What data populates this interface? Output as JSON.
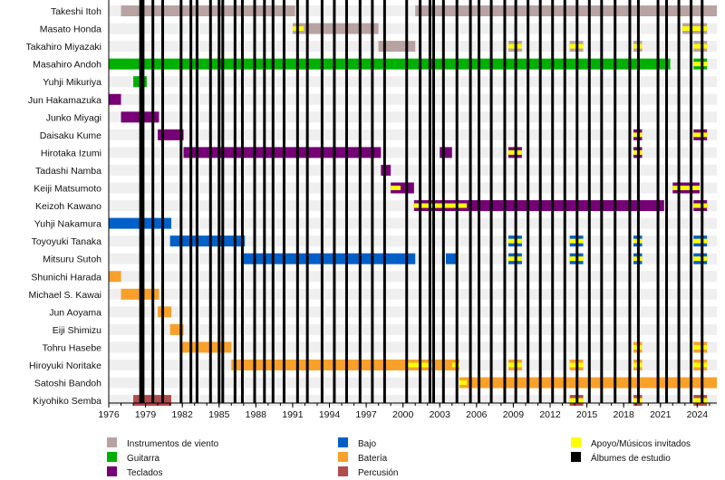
{
  "chart_data": {
    "type": "timeline",
    "title": "",
    "xlabel": "",
    "ylabel": "",
    "xlim": [
      1976,
      2025.6
    ],
    "x_ticks": [
      1976,
      1979,
      1982,
      1985,
      1988,
      1991,
      1994,
      1997,
      2000,
      2003,
      2006,
      2009,
      2012,
      2015,
      2018,
      2021,
      2024
    ],
    "x_minor_step": 1,
    "grid": "alternating row bands",
    "legend_position": "bottom",
    "colors": {
      "wind": "#b8a2a2",
      "guitar": "#00b000",
      "keys": "#760075",
      "bass": "#0060c8",
      "drums": "#f8a02a",
      "perc": "#b04d4d",
      "support": "#ffff00",
      "album": "#000000"
    },
    "legend": [
      {
        "key": "wind",
        "label": "Instrumentos de viento"
      },
      {
        "key": "guitar",
        "label": "Guitarra"
      },
      {
        "key": "keys",
        "label": "Teclados"
      },
      {
        "key": "bass",
        "label": "Bajo"
      },
      {
        "key": "drums",
        "label": "Batería"
      },
      {
        "key": "perc",
        "label": "Percusión"
      },
      {
        "key": "support",
        "label": "Apoyo/Músicos invitados"
      },
      {
        "key": "album",
        "label": "Álbumes de estudio"
      }
    ],
    "members": [
      {
        "name": "Takeshi Itoh",
        "periods": [
          {
            "k": "wind",
            "s": 1977,
            "e": 1991.2
          },
          {
            "k": "wind",
            "s": 2001,
            "e": 2025.6
          }
        ]
      },
      {
        "name": "Masato Honda",
        "periods": [
          {
            "k": "wind",
            "s": 1991,
            "e": 1998,
            "sup": [
              1991,
              1991.9
            ]
          },
          {
            "k": "wind",
            "s": 2022.8,
            "e": 2024.8,
            "stripe": true
          }
        ]
      },
      {
        "name": "Takahiro Miyazaki",
        "periods": [
          {
            "k": "wind",
            "s": 1998,
            "e": 2001
          },
          {
            "k": "wind",
            "s": 2008.6,
            "e": 2009.7,
            "stripe": true
          },
          {
            "k": "wind",
            "s": 2013.6,
            "e": 2014.7,
            "stripe": true
          },
          {
            "k": "wind",
            "s": 2018.8,
            "e": 2019.5,
            "stripe": true
          },
          {
            "k": "wind",
            "s": 2023.7,
            "e": 2024.8,
            "stripe": true
          }
        ]
      },
      {
        "name": "Masahiro Andoh",
        "periods": [
          {
            "k": "guitar",
            "s": 1976,
            "e": 2021.8
          },
          {
            "k": "guitar",
            "s": 2023.7,
            "e": 2024.8,
            "stripe": true
          }
        ]
      },
      {
        "name": "Yuhji Mikuriya",
        "periods": [
          {
            "k": "guitar",
            "s": 1978,
            "e": 1979.1
          }
        ]
      },
      {
        "name": "Jun Hakamazuka",
        "periods": [
          {
            "k": "keys",
            "s": 1976,
            "e": 1977
          }
        ]
      },
      {
        "name": "Junko Miyagi",
        "periods": [
          {
            "k": "keys",
            "s": 1977,
            "e": 1980.1
          }
        ]
      },
      {
        "name": "Daisaku Kume",
        "periods": [
          {
            "k": "keys",
            "s": 1980,
            "e": 1982.1
          },
          {
            "k": "keys",
            "s": 2018.8,
            "e": 2019.5,
            "stripe": true
          },
          {
            "k": "keys",
            "s": 2023.7,
            "e": 2024.8,
            "stripe": true
          }
        ]
      },
      {
        "name": "Hirotaka Izumi",
        "periods": [
          {
            "k": "keys",
            "s": 1982.1,
            "e": 1998.2
          },
          {
            "k": "keys",
            "s": 2003,
            "e": 2004
          },
          {
            "k": "keys",
            "s": 2008.6,
            "e": 2009.7,
            "stripe": true
          },
          {
            "k": "keys",
            "s": 2018.8,
            "e": 2019.5,
            "stripe": true
          }
        ]
      },
      {
        "name": "Tadashi Namba",
        "periods": [
          {
            "k": "keys",
            "s": 1998.2,
            "e": 1999
          }
        ]
      },
      {
        "name": "Keiji Matsumoto",
        "periods": [
          {
            "k": "keys",
            "s": 1999,
            "e": 2000.9,
            "sup": [
              1999,
              1999.8
            ]
          },
          {
            "k": "keys",
            "s": 2022,
            "e": 2024.2,
            "stripe": true
          }
        ]
      },
      {
        "name": "Keizoh Kawano",
        "periods": [
          {
            "k": "keys",
            "s": 2000.9,
            "e": 2021.3,
            "sup": [
              2000.9,
              2005.2
            ]
          },
          {
            "k": "keys",
            "s": 2023.7,
            "e": 2024.8,
            "stripe": true
          }
        ]
      },
      {
        "name": "Yuhji Nakamura",
        "periods": [
          {
            "k": "bass",
            "s": 1976,
            "e": 1981.1
          }
        ]
      },
      {
        "name": "Toyoyuki Tanaka",
        "periods": [
          {
            "k": "bass",
            "s": 1981,
            "e": 1987.1
          },
          {
            "k": "bass",
            "s": 2008.6,
            "e": 2009.7,
            "stripe": true
          },
          {
            "k": "bass",
            "s": 2013.6,
            "e": 2014.7,
            "stripe": true
          },
          {
            "k": "bass",
            "s": 2018.8,
            "e": 2019.5,
            "stripe": true
          },
          {
            "k": "bass",
            "s": 2023.7,
            "e": 2024.8,
            "stripe": true
          }
        ]
      },
      {
        "name": "Mitsuru Sutoh",
        "periods": [
          {
            "k": "bass",
            "s": 1987,
            "e": 2001
          },
          {
            "k": "bass",
            "s": 2003.5,
            "e": 2004.4
          },
          {
            "k": "bass",
            "s": 2008.6,
            "e": 2009.7,
            "stripe": true
          },
          {
            "k": "bass",
            "s": 2013.6,
            "e": 2014.7,
            "stripe": true
          },
          {
            "k": "bass",
            "s": 2018.8,
            "e": 2019.5,
            "stripe": true
          },
          {
            "k": "bass",
            "s": 2023.7,
            "e": 2024.8,
            "stripe": true
          }
        ]
      },
      {
        "name": "Shunichi Harada",
        "periods": [
          {
            "k": "drums",
            "s": 1976,
            "e": 1977
          }
        ]
      },
      {
        "name": "Michael S. Kawai",
        "periods": [
          {
            "k": "drums",
            "s": 1977,
            "e": 1980.1
          }
        ]
      },
      {
        "name": "Jun Aoyama",
        "periods": [
          {
            "k": "drums",
            "s": 1980,
            "e": 1981.1
          }
        ]
      },
      {
        "name": "Eiji Shimizu",
        "periods": [
          {
            "k": "drums",
            "s": 1981,
            "e": 1982.1
          }
        ]
      },
      {
        "name": "Tohru Hasebe",
        "periods": [
          {
            "k": "drums",
            "s": 1982,
            "e": 1986
          },
          {
            "k": "drums",
            "s": 2018.8,
            "e": 2019.5,
            "stripe": true
          },
          {
            "k": "drums",
            "s": 2023.7,
            "e": 2024.8,
            "stripe": true
          }
        ]
      },
      {
        "name": "Hiroyuki Noritake",
        "periods": [
          {
            "k": "drums",
            "s": 1986,
            "e": 2004.6,
            "sup": [
              2000.2,
              2002.6
            ]
          },
          {
            "k": "drums",
            "s": 2004,
            "e": 2004.6,
            "stripe": true
          },
          {
            "k": "drums",
            "s": 2008.6,
            "e": 2009.7,
            "stripe": true
          },
          {
            "k": "drums",
            "s": 2013.6,
            "e": 2014.7,
            "stripe": true
          },
          {
            "k": "drums",
            "s": 2018.8,
            "e": 2019.5,
            "stripe": true
          },
          {
            "k": "drums",
            "s": 2023.7,
            "e": 2024.8,
            "stripe": true
          }
        ]
      },
      {
        "name": "Satoshi Bandoh",
        "periods": [
          {
            "k": "drums",
            "s": 2004.6,
            "e": 2025.6,
            "sup": [
              2004.6,
              2005.2
            ]
          }
        ]
      },
      {
        "name": "Kiyohiko Semba",
        "periods": [
          {
            "k": "perc",
            "s": 1978,
            "e": 1981.1
          },
          {
            "k": "perc",
            "s": 2013.6,
            "e": 2014.7,
            "stripe": true
          },
          {
            "k": "perc",
            "s": 2018.8,
            "e": 2019.5,
            "stripe": true
          },
          {
            "k": "perc",
            "s": 2023.7,
            "e": 2024.8,
            "stripe": true
          }
        ]
      }
    ],
    "albums": [
      1978.6,
      1978.8,
      1979.6,
      1980.4,
      1981.9,
      1982.7,
      1983.2,
      1984.3,
      1985.0,
      1985.3,
      1986.3,
      1986.9,
      1987.9,
      1988.7,
      1989.4,
      1990.3,
      1991.4,
      1992.2,
      1993.4,
      1994.4,
      1995.4,
      1996.5,
      1997.5,
      1998.5,
      2000.3,
      2001.4,
      2002.2,
      2002.5,
      2003.3,
      2004.4,
      2005.5,
      2006.2,
      2007.2,
      2008.3,
      2009.2,
      2010.2,
      2011.2,
      2012.2,
      2013.2,
      2014.2,
      2015.2,
      2016.2,
      2017.3,
      2018.5,
      2019.2,
      2020.8,
      2021.5,
      2022.5,
      2023.5,
      2024.4
    ]
  }
}
